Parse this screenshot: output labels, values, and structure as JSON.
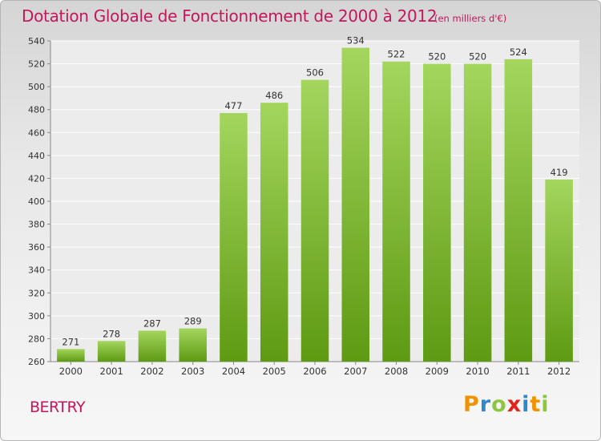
{
  "header": {
    "title": "Dotation Globale de Fonctionnement de 2000 à 2012",
    "unit": "(en milliers d'€)"
  },
  "commune": "BERTRY",
  "logo": {
    "text": "Proxiti",
    "letters": [
      {
        "ch": "P",
        "color": "#f39200"
      },
      {
        "ch": "r",
        "color": "#2e88c9"
      },
      {
        "ch": "o",
        "color": "#8dc63f"
      },
      {
        "ch": "x",
        "color": "#e2231a"
      },
      {
        "ch": "i",
        "color": "#2e88c9"
      },
      {
        "ch": "t",
        "color": "#f39200"
      },
      {
        "ch": "i",
        "color": "#8dc63f"
      }
    ]
  },
  "colors": {
    "bar_top": "#a4d65e",
    "bar_bottom": "#5e9a12",
    "title": "#c2185b"
  },
  "chart_data": {
    "type": "bar",
    "title": "Dotation Globale de Fonctionnement de 2000 à 2012",
    "unit": "(en milliers d'€)",
    "categories": [
      "2000",
      "2001",
      "2002",
      "2003",
      "2004",
      "2005",
      "2006",
      "2007",
      "2008",
      "2009",
      "2010",
      "2011",
      "2012"
    ],
    "values": [
      271,
      278,
      287,
      289,
      477,
      486,
      506,
      534,
      522,
      520,
      520,
      524,
      419
    ],
    "ylim": [
      260,
      540
    ],
    "yticks": [
      260,
      280,
      300,
      320,
      340,
      360,
      380,
      400,
      420,
      440,
      460,
      480,
      500,
      520,
      540
    ],
    "grid": true,
    "legend": "none"
  }
}
